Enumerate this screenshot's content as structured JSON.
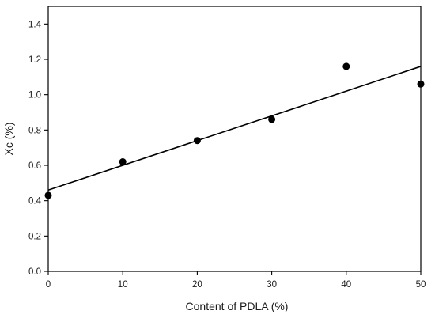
{
  "chart_data": {
    "type": "scatter",
    "title": "",
    "xlabel": "Content of PDLA (%)",
    "ylabel": "Xc (%)",
    "xlim": [
      0,
      50
    ],
    "ylim": [
      0.0,
      1.5
    ],
    "x_ticks": [
      0,
      10,
      20,
      30,
      40,
      50
    ],
    "y_ticks": [
      0.0,
      0.2,
      0.4,
      0.6,
      0.8,
      1.0,
      1.2,
      1.4
    ],
    "x_tick_labels": [
      "0",
      "10",
      "20",
      "30",
      "40",
      "50"
    ],
    "y_tick_labels": [
      "0.0",
      "0.2",
      "0.4",
      "0.6",
      "0.8",
      "1.0",
      "1.2",
      "1.4"
    ],
    "grid": false,
    "series": [
      {
        "type": "scatter",
        "x": [
          0,
          10,
          20,
          30,
          40,
          50
        ],
        "y": [
          0.43,
          0.62,
          0.74,
          0.86,
          1.16,
          1.06
        ]
      },
      {
        "type": "line",
        "x": [
          0,
          50
        ],
        "y": [
          0.46,
          1.16
        ]
      }
    ]
  }
}
